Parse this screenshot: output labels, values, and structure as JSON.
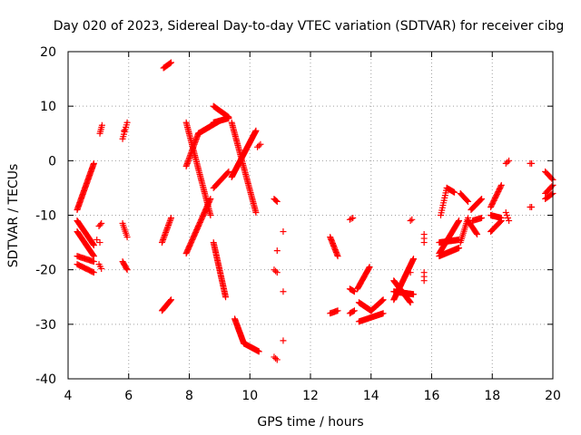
{
  "chart_data": {
    "type": "scatter",
    "title": "Day 020 of 2023, Sidereal Day-to-day VTEC variation (SDTVAR) for receiver cibg",
    "xlabel": "GPS time / hours",
    "ylabel": "SDTVAR / TECUs",
    "xlim": [
      4,
      20
    ],
    "ylim": [
      -40,
      20
    ],
    "xticks": [
      4,
      6,
      8,
      10,
      12,
      14,
      16,
      18,
      20
    ],
    "yticks": [
      -40,
      -30,
      -20,
      -10,
      0,
      10,
      20
    ],
    "grid": true,
    "marker": "+",
    "color": "#ff0000",
    "segments": [
      {
        "x0": 4.3,
        "y0": -9.0,
        "x1": 4.85,
        "y1": -0.5,
        "n": 40
      },
      {
        "x0": 4.3,
        "y0": -11.0,
        "x1": 4.85,
        "y1": -15.5,
        "n": 30
      },
      {
        "x0": 4.3,
        "y0": -13.0,
        "x1": 4.85,
        "y1": -17.5,
        "n": 28
      },
      {
        "x0": 4.3,
        "y0": -17.5,
        "x1": 4.85,
        "y1": -18.5,
        "n": 16
      },
      {
        "x0": 4.3,
        "y0": -19.0,
        "x1": 4.85,
        "y1": -20.5,
        "n": 16
      },
      {
        "x0": 5.05,
        "y0": 5.0,
        "x1": 5.12,
        "y1": 6.5,
        "n": 5
      },
      {
        "x0": 5.02,
        "y0": -12.0,
        "x1": 5.1,
        "y1": -11.5,
        "n": 3
      },
      {
        "x0": 5.02,
        "y0": -19.0,
        "x1": 5.1,
        "y1": -19.8,
        "n": 3
      },
      {
        "x0": 4.95,
        "y0": -14.5,
        "x1": 5.05,
        "y1": -15.0,
        "n": 2
      },
      {
        "x0": 5.8,
        "y0": 4.0,
        "x1": 5.95,
        "y1": 7.0,
        "n": 8
      },
      {
        "x0": 5.8,
        "y0": -11.5,
        "x1": 5.95,
        "y1": -14.0,
        "n": 8
      },
      {
        "x0": 5.8,
        "y0": -18.5,
        "x1": 5.95,
        "y1": -20.0,
        "n": 8
      },
      {
        "x0": 7.15,
        "y0": 17.0,
        "x1": 7.4,
        "y1": 18.0,
        "n": 10
      },
      {
        "x0": 7.1,
        "y0": -15.0,
        "x1": 7.4,
        "y1": -10.5,
        "n": 18
      },
      {
        "x0": 7.1,
        "y0": -27.5,
        "x1": 7.4,
        "y1": -25.5,
        "n": 14
      },
      {
        "x0": 7.9,
        "y0": 7.0,
        "x1": 8.7,
        "y1": -10.0,
        "n": 60
      },
      {
        "x0": 7.9,
        "y0": -17.0,
        "x1": 8.7,
        "y1": -7.0,
        "n": 45
      },
      {
        "x0": 7.9,
        "y0": -1.0,
        "x1": 8.3,
        "y1": 5.0,
        "n": 25
      },
      {
        "x0": 8.3,
        "y0": 5.0,
        "x1": 9.0,
        "y1": 7.3,
        "n": 30
      },
      {
        "x0": 8.8,
        "y0": 10.0,
        "x1": 9.3,
        "y1": 8.0,
        "n": 20
      },
      {
        "x0": 8.8,
        "y0": -5.0,
        "x1": 9.3,
        "y1": -2.0,
        "n": 16
      },
      {
        "x0": 8.8,
        "y0": 7.0,
        "x1": 9.3,
        "y1": 7.8,
        "n": 18
      },
      {
        "x0": 8.8,
        "y0": -15.0,
        "x1": 9.2,
        "y1": -25.0,
        "n": 40
      },
      {
        "x0": 9.4,
        "y0": 7.0,
        "x1": 10.2,
        "y1": -9.5,
        "n": 60
      },
      {
        "x0": 9.4,
        "y0": -3.0,
        "x1": 10.2,
        "y1": 5.5,
        "n": 60
      },
      {
        "x0": 9.5,
        "y0": -29.0,
        "x1": 9.8,
        "y1": -33.5,
        "n": 25
      },
      {
        "x0": 9.8,
        "y0": -33.5,
        "x1": 10.3,
        "y1": -35.0,
        "n": 25
      },
      {
        "x0": 10.25,
        "y0": 2.5,
        "x1": 10.35,
        "y1": 3.0,
        "n": 3
      },
      {
        "x0": 10.8,
        "y0": -7.0,
        "x1": 10.9,
        "y1": -7.5,
        "n": 4
      },
      {
        "x0": 10.8,
        "y0": -20.0,
        "x1": 10.9,
        "y1": -20.5,
        "n": 3
      },
      {
        "x0": 10.8,
        "y0": -36.0,
        "x1": 10.9,
        "y1": -36.5,
        "n": 3
      },
      {
        "x0": 12.65,
        "y0": -14.0,
        "x1": 12.9,
        "y1": -17.5,
        "n": 16
      },
      {
        "x0": 12.65,
        "y0": -28.0,
        "x1": 12.9,
        "y1": -27.5,
        "n": 8
      },
      {
        "x0": 13.3,
        "y0": -10.8,
        "x1": 13.4,
        "y1": -10.5,
        "n": 3
      },
      {
        "x0": 13.3,
        "y0": -23.5,
        "x1": 13.45,
        "y1": -24.0,
        "n": 6
      },
      {
        "x0": 13.3,
        "y0": -28.0,
        "x1": 13.45,
        "y1": -27.5,
        "n": 5
      },
      {
        "x0": 13.55,
        "y0": -23.5,
        "x1": 13.95,
        "y1": -19.5,
        "n": 22
      },
      {
        "x0": 13.6,
        "y0": -26.0,
        "x1": 14.0,
        "y1": -27.5,
        "n": 20
      },
      {
        "x0": 14.0,
        "y0": -27.5,
        "x1": 14.4,
        "y1": -25.5,
        "n": 18
      },
      {
        "x0": 13.6,
        "y0": -29.5,
        "x1": 14.4,
        "y1": -28.0,
        "n": 28
      },
      {
        "x0": 14.75,
        "y0": -25.5,
        "x1": 15.4,
        "y1": -18.0,
        "n": 45
      },
      {
        "x0": 14.75,
        "y0": -24.0,
        "x1": 15.4,
        "y1": -24.5,
        "n": 35
      },
      {
        "x0": 14.75,
        "y0": -22.0,
        "x1": 15.3,
        "y1": -26.0,
        "n": 30
      },
      {
        "x0": 15.3,
        "y0": -11.0,
        "x1": 15.35,
        "y1": -10.8,
        "n": 2
      },
      {
        "x0": 15.75,
        "y0": -15.0,
        "x1": 15.75,
        "y1": -13.5,
        "n": 3
      },
      {
        "x0": 15.75,
        "y0": -20.5,
        "x1": 15.75,
        "y1": -22.0,
        "n": 3
      },
      {
        "x0": 16.25,
        "y0": -17.0,
        "x1": 16.9,
        "y1": -11.0,
        "n": 35
      },
      {
        "x0": 16.25,
        "y0": -15.0,
        "x1": 16.9,
        "y1": -14.5,
        "n": 30
      },
      {
        "x0": 16.25,
        "y0": -17.5,
        "x1": 16.9,
        "y1": -16.0,
        "n": 28
      },
      {
        "x0": 16.3,
        "y0": -10.0,
        "x1": 16.5,
        "y1": -5.0,
        "n": 12
      },
      {
        "x0": 16.5,
        "y0": -5.0,
        "x1": 16.75,
        "y1": -5.8,
        "n": 10
      },
      {
        "x0": 16.95,
        "y0": -15.0,
        "x1": 17.2,
        "y1": -10.5,
        "n": 14
      },
      {
        "x0": 16.95,
        "y0": -6.0,
        "x1": 17.2,
        "y1": -7.5,
        "n": 10
      },
      {
        "x0": 17.2,
        "y0": -11.0,
        "x1": 17.5,
        "y1": -13.5,
        "n": 14
      },
      {
        "x0": 17.3,
        "y0": -9.0,
        "x1": 17.65,
        "y1": -7.0,
        "n": 16
      },
      {
        "x0": 17.35,
        "y0": -11.0,
        "x1": 17.65,
        "y1": -10.5,
        "n": 10
      },
      {
        "x0": 17.95,
        "y0": -8.5,
        "x1": 18.3,
        "y1": -4.5,
        "n": 18
      },
      {
        "x0": 17.95,
        "y0": -10.0,
        "x1": 18.3,
        "y1": -10.5,
        "n": 14
      },
      {
        "x0": 17.95,
        "y0": -13.0,
        "x1": 18.3,
        "y1": -11.0,
        "n": 14
      },
      {
        "x0": 18.45,
        "y0": -0.5,
        "x1": 18.55,
        "y1": 0.0,
        "n": 3
      },
      {
        "x0": 18.45,
        "y0": -9.5,
        "x1": 18.55,
        "y1": -11.0,
        "n": 4
      },
      {
        "x0": 19.25,
        "y0": -0.5,
        "x1": 19.3,
        "y1": -0.5,
        "n": 2
      },
      {
        "x0": 19.25,
        "y0": -8.5,
        "x1": 19.3,
        "y1": -8.5,
        "n": 2
      },
      {
        "x0": 19.75,
        "y0": -2.0,
        "x1": 20.0,
        "y1": -3.5,
        "n": 8
      },
      {
        "x0": 19.75,
        "y0": -6.0,
        "x1": 20.0,
        "y1": -4.5,
        "n": 8
      },
      {
        "x0": 19.75,
        "y0": -7.0,
        "x1": 20.0,
        "y1": -6.0,
        "n": 8
      }
    ],
    "points": [
      {
        "x": 11.1,
        "y": -13.0
      },
      {
        "x": 10.9,
        "y": -16.5
      },
      {
        "x": 11.1,
        "y": -24.0
      },
      {
        "x": 11.1,
        "y": -33.0
      },
      {
        "x": 5.85,
        "y": 5.5
      },
      {
        "x": 15.3,
        "y": -20.5
      }
    ]
  }
}
